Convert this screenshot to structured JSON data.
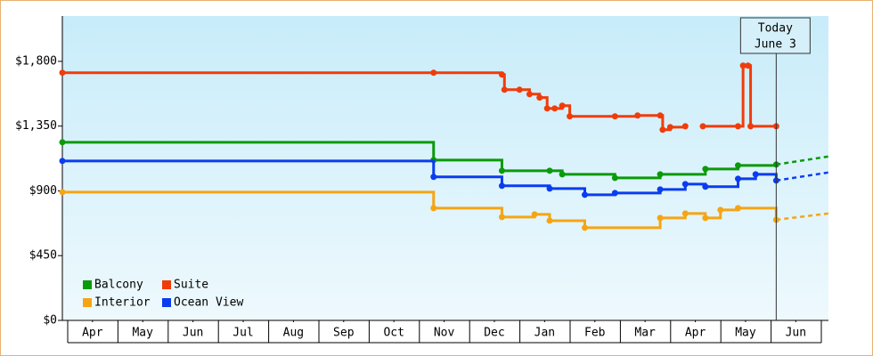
{
  "chart_data": {
    "type": "line",
    "step": true,
    "ylim": [
      0,
      2115
    ],
    "yticks": [
      {
        "value": 0,
        "label": "$0"
      },
      {
        "value": 450,
        "label": "$450"
      },
      {
        "value": 900,
        "label": "$900"
      },
      {
        "value": 1350,
        "label": "$1,350"
      },
      {
        "value": 1800,
        "label": "$1,800"
      }
    ],
    "xlim": [
      -0.1,
      15.15
    ],
    "xticks": [
      {
        "value": 0.5,
        "label": "Apr"
      },
      {
        "value": 1.5,
        "label": "May"
      },
      {
        "value": 2.5,
        "label": "Jun"
      },
      {
        "value": 3.5,
        "label": "Jul"
      },
      {
        "value": 4.5,
        "label": "Aug"
      },
      {
        "value": 5.5,
        "label": "Sep"
      },
      {
        "value": 6.5,
        "label": "Oct"
      },
      {
        "value": 7.5,
        "label": "Nov"
      },
      {
        "value": 8.5,
        "label": "Dec"
      },
      {
        "value": 9.5,
        "label": "Jan"
      },
      {
        "value": 10.5,
        "label": "Feb"
      },
      {
        "value": 11.5,
        "label": "Mar"
      },
      {
        "value": 12.5,
        "label": "Apr"
      },
      {
        "value": 13.5,
        "label": "May"
      },
      {
        "value": 14.5,
        "label": "Jun"
      }
    ],
    "today": {
      "x": 14.11,
      "label_1": "Today",
      "label_2": "June 3"
    },
    "legend": "bottom-left",
    "series": [
      {
        "name": "Balcony",
        "color": "#0a9a0a",
        "x": [
          -0.1,
          7.29,
          8.65,
          9.6,
          9.85,
          10.9,
          11.8,
          12.7,
          13.35,
          14.11
        ],
        "values": [
          1238,
          1114,
          1040,
          1040,
          1015,
          990,
          1015,
          1052,
          1077,
          1083
        ],
        "projection": {
          "x": [
            14.11,
            15.15
          ],
          "values": [
            1083,
            1139
          ]
        }
      },
      {
        "name": "Suite",
        "color": "#f03c0a",
        "x": [
          -0.1,
          7.29,
          8.65,
          8.7,
          9.0,
          9.2,
          9.4,
          9.55,
          9.7,
          9.85,
          10.0,
          10.9,
          11.35,
          11.8,
          11.85,
          12.0,
          12.3,
          12.4,
          12.65,
          13.35,
          13.45,
          13.55,
          13.6,
          14.11
        ],
        "values": [
          1721,
          1721,
          1708,
          1603,
          1603,
          1572,
          1548,
          1473,
          1473,
          1492,
          1418,
          1418,
          1424,
          1424,
          1325,
          1343,
          1349,
          null,
          1349,
          1349,
          1770,
          1770,
          1349,
          1349
        ]
      },
      {
        "name": "Interior",
        "color": "#f5a514",
        "x": [
          -0.1,
          7.29,
          8.65,
          9.3,
          9.6,
          10.3,
          11.8,
          12.3,
          12.7,
          13.0,
          13.35,
          14.11
        ],
        "values": [
          891,
          780,
          718,
          737,
          693,
          644,
          712,
          743,
          712,
          768,
          780,
          699
        ],
        "projection": {
          "x": [
            14.11,
            15.15
          ],
          "values": [
            699,
            743
          ]
        }
      },
      {
        "name": "Ocean View",
        "color": "#0a3cf0",
        "x": [
          -0.1,
          7.29,
          8.65,
          9.6,
          10.3,
          10.9,
          11.8,
          12.3,
          12.7,
          13.35,
          13.7,
          14.11
        ],
        "values": [
          1108,
          997,
          935,
          916,
          873,
          885,
          910,
          947,
          929,
          984,
          1015,
          972
        ],
        "projection": {
          "x": [
            14.11,
            15.15
          ],
          "values": [
            972,
            1028
          ]
        }
      }
    ]
  }
}
